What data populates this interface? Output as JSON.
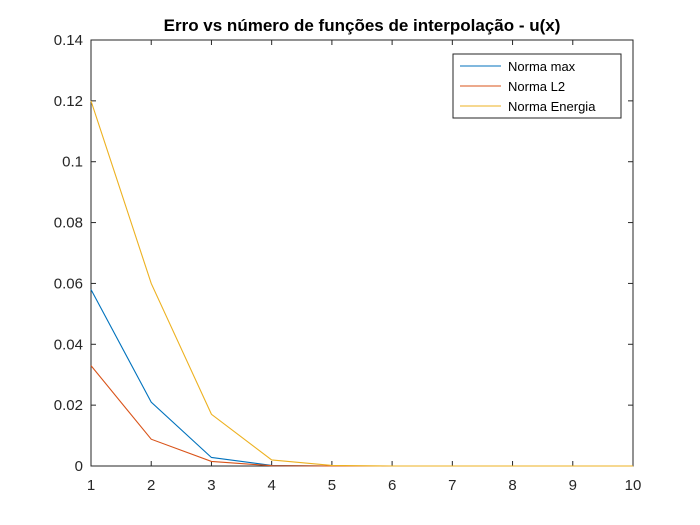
{
  "chart_data": {
    "type": "line",
    "title": "Erro vs número de funções de interpolação - u(x)",
    "xlabel": "",
    "ylabel": "",
    "x": [
      1,
      2,
      3,
      4,
      5,
      6,
      7,
      8,
      9,
      10
    ],
    "xlim": [
      1,
      10
    ],
    "ylim": [
      0,
      0.14
    ],
    "xticks": [
      1,
      2,
      3,
      4,
      5,
      6,
      7,
      8,
      9,
      10
    ],
    "xtick_labels": [
      "1",
      "2",
      "3",
      "4",
      "5",
      "6",
      "7",
      "8",
      "9",
      "10"
    ],
    "yticks": [
      0,
      0.02,
      0.04,
      0.06,
      0.08,
      0.1,
      0.12,
      0.14
    ],
    "ytick_labels": [
      "0",
      "0.02",
      "0.04",
      "0.06",
      "0.08",
      "0.1",
      "0.12",
      "0.14"
    ],
    "grid": false,
    "legend_position": "top-right",
    "series": [
      {
        "name": "Norma max",
        "color": "#0072BD",
        "values": [
          0.058,
          0.021,
          0.0028,
          0.0002,
          0.0,
          0.0,
          0.0,
          0.0,
          0.0,
          0.0
        ]
      },
      {
        "name": "Norma L2",
        "color": "#D95319",
        "values": [
          0.033,
          0.0088,
          0.0015,
          0.0001,
          0.0,
          0.0,
          0.0,
          0.0,
          0.0,
          0.0
        ]
      },
      {
        "name": "Norma Energia",
        "color": "#EDB120",
        "values": [
          0.12,
          0.06,
          0.017,
          0.002,
          0.0002,
          0.0,
          0.0,
          0.0,
          0.0,
          0.0
        ]
      }
    ]
  }
}
